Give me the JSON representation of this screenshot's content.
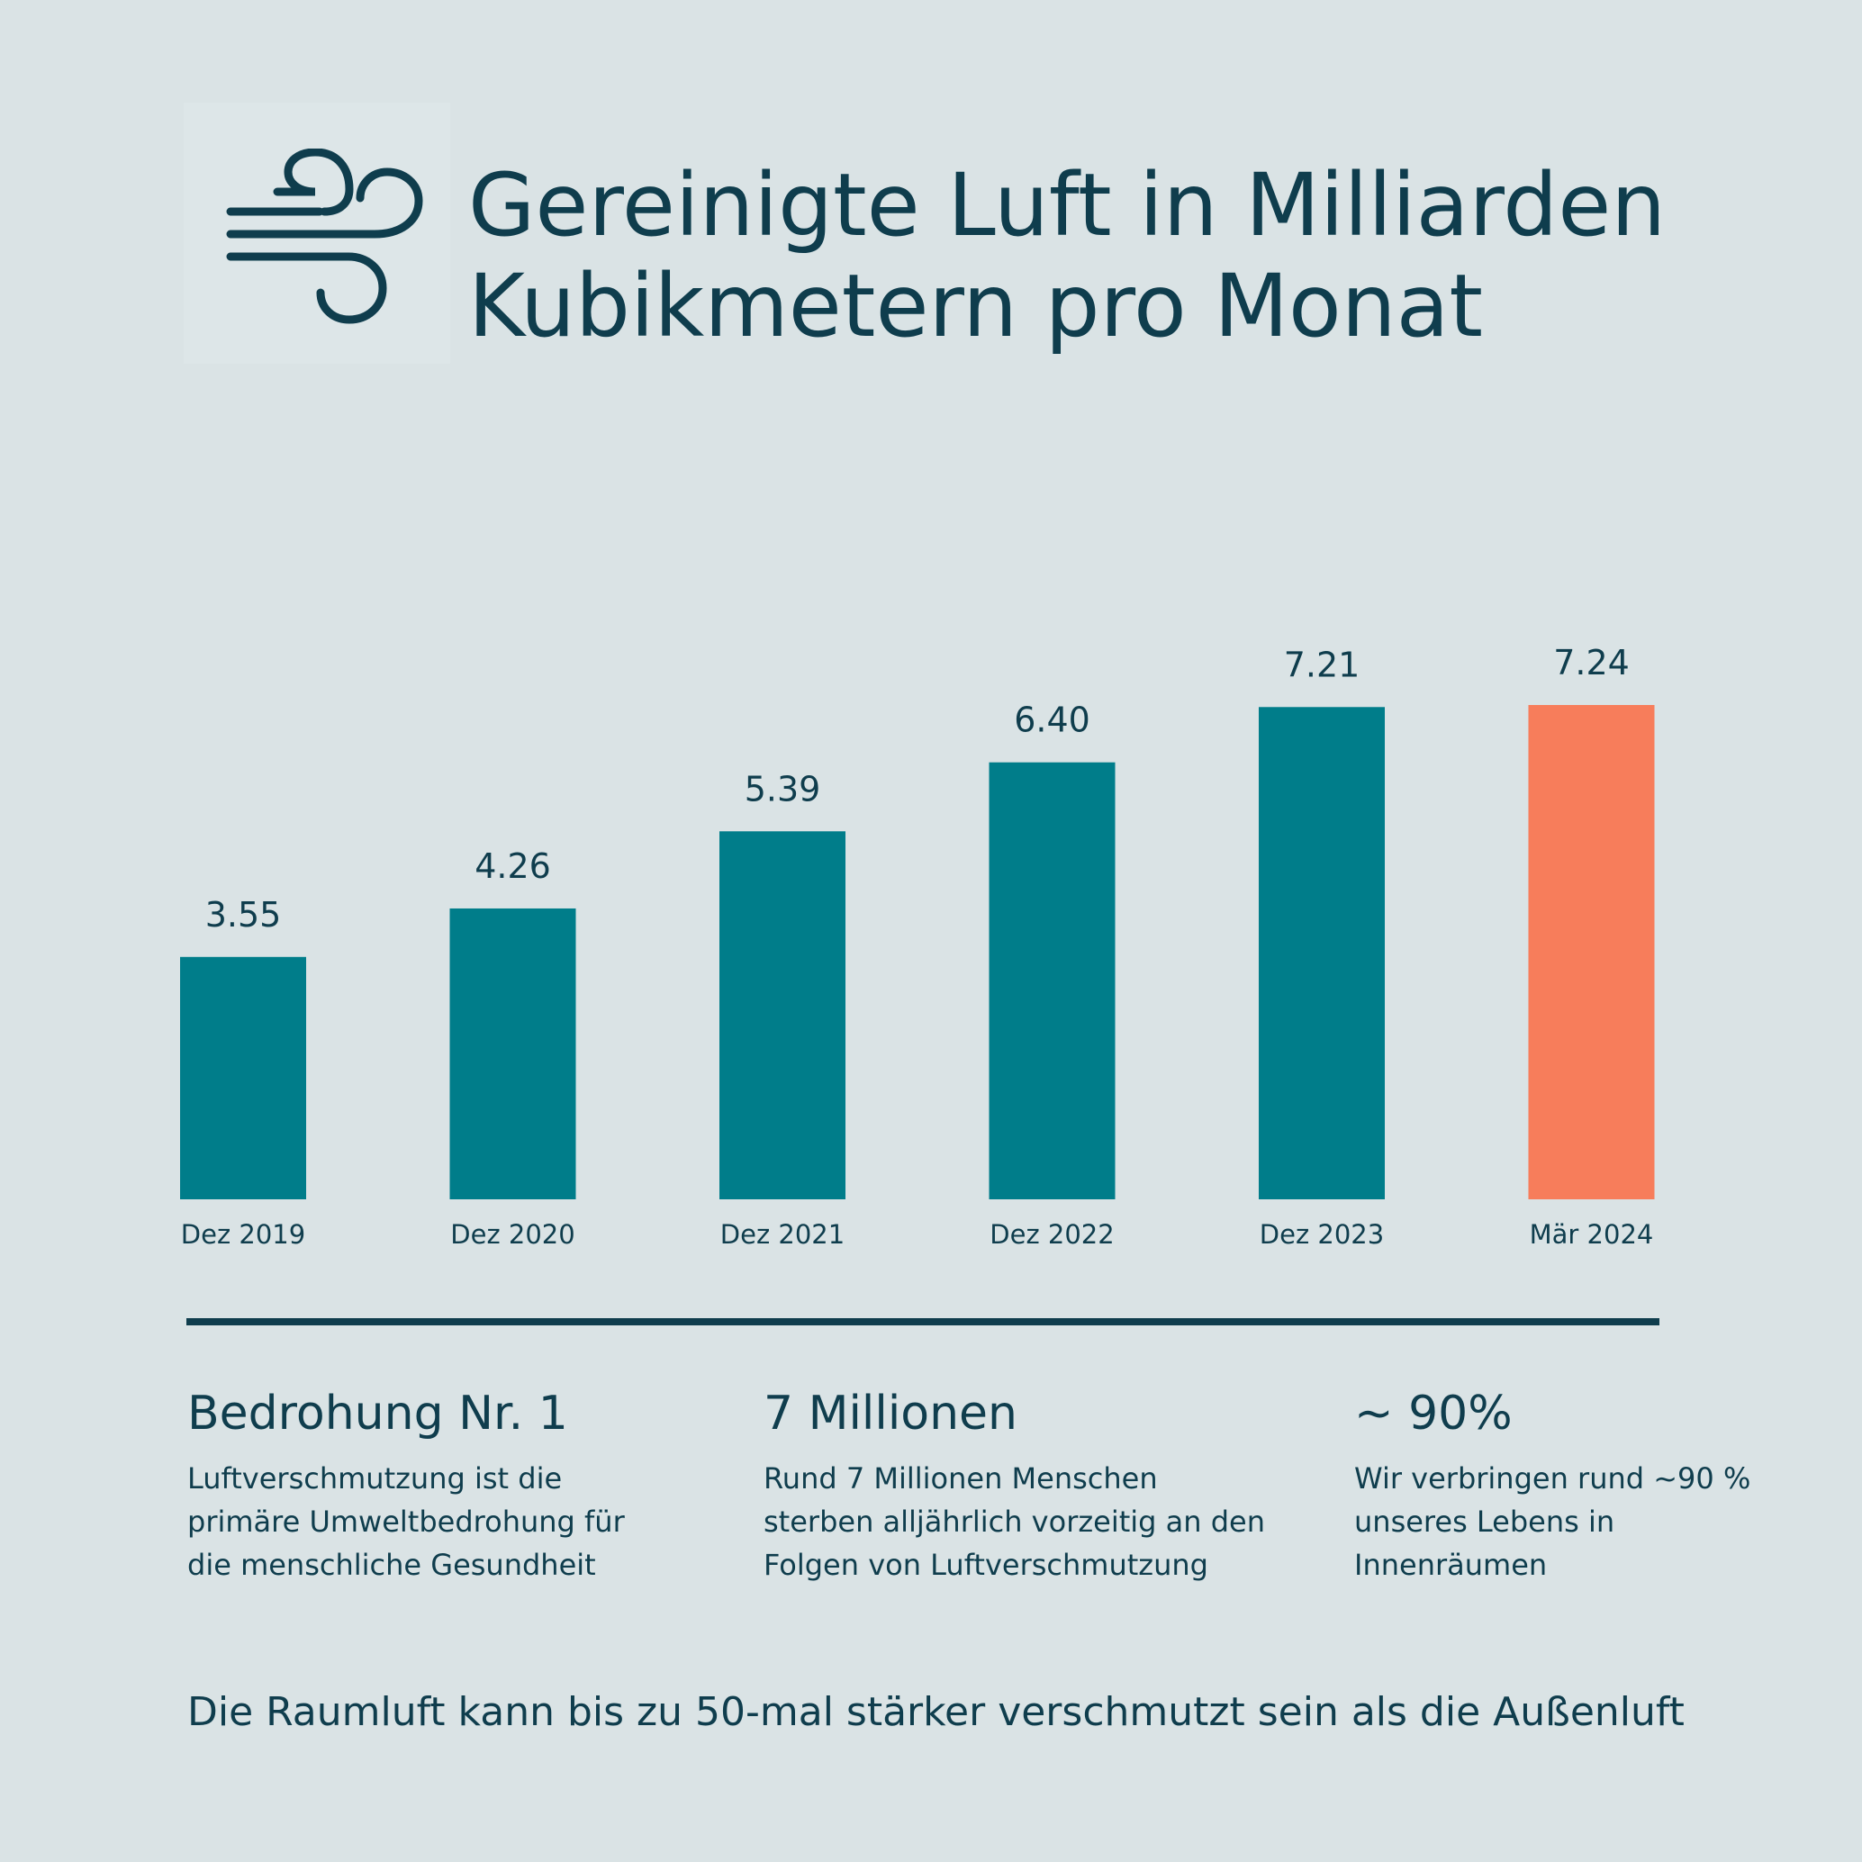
{
  "title": {
    "line1": "Gereinigte Luft in Milliarden",
    "line2": "Kubikmetern pro Monat",
    "icon": "wind-icon"
  },
  "colors": {
    "background": "#dae3e5",
    "text": "#0f3d4d",
    "bar": "#007d8a",
    "highlight": "#f77d5b"
  },
  "chart_data": {
    "type": "bar",
    "categories": [
      "Dez 2019",
      "Dez 2020",
      "Dez 2021",
      "Dez 2022",
      "Dez 2023",
      "Mär 2024"
    ],
    "values": [
      3.55,
      4.26,
      5.39,
      6.4,
      7.21,
      7.24
    ],
    "value_labels": [
      "3.55",
      "4.26",
      "5.39",
      "6.40",
      "7.21",
      "7.24"
    ],
    "highlight_index": 5,
    "ylim": [
      0,
      7.24
    ],
    "grid": false,
    "legend": "none"
  },
  "stats": [
    {
      "headline": "Bedrohung Nr. 1",
      "text": "Luftverschmutzung ist die\nprimäre Umweltbedrohung für\ndie menschliche Gesundheit"
    },
    {
      "headline": "7 Millionen",
      "text": "Rund 7 Millionen Menschen\nsterben alljährlich vorzeitig an den\nFolgen von Luftverschmutzung"
    },
    {
      "headline": "~ 90%",
      "text": "Wir verbringen rund ~90 %\nunseres Lebens in\nInnenräumen"
    }
  ],
  "footer": "Die Raumluft kann bis zu 50-mal stärker verschmutzt sein als die Außenluft"
}
